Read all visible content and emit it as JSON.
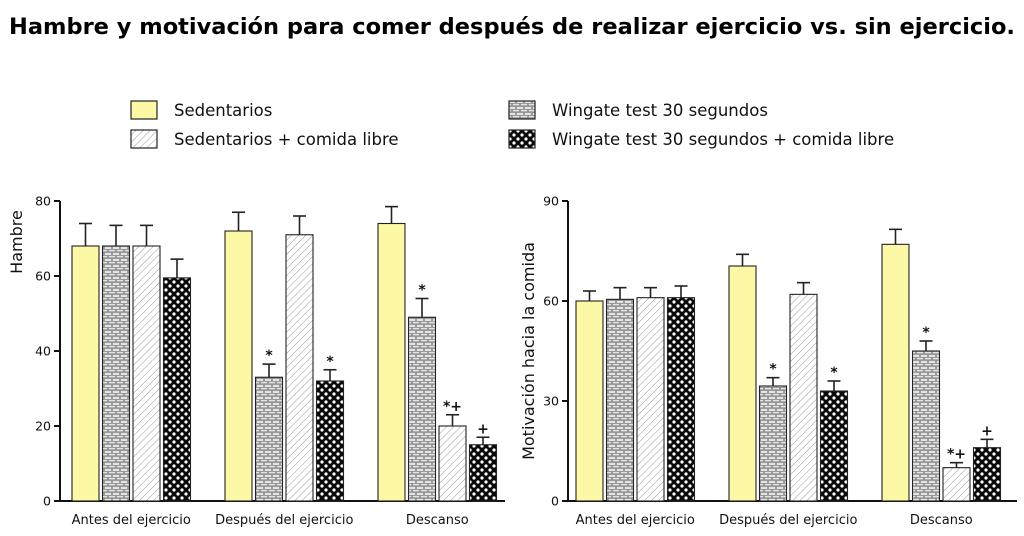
{
  "title": "Hambre y motivación para comer después de realizar ejercicio vs. sin ejercicio.",
  "legend": [
    {
      "label": "Sedentarios",
      "pattern": "solid"
    },
    {
      "label": "Sedentarios + comida libre",
      "pattern": "hatch"
    },
    {
      "label": "Wingate test 30 segundos",
      "pattern": "brick"
    },
    {
      "label": "Wingate test 30 segundos + comida libre",
      "pattern": "dots"
    }
  ],
  "colors": {
    "sedentary": "#FCF8A6",
    "bar_outline": "#222222",
    "pattern_fill": "#555555"
  },
  "chart_data": [
    {
      "type": "bar",
      "ylabel": "Hambre",
      "ylim": [
        0,
        80
      ],
      "yticks": [
        0,
        20,
        40,
        60,
        80
      ],
      "categories": [
        "Antes del ejercicio",
        "Después del ejercicio",
        "Descanso"
      ],
      "series": [
        {
          "name": "Sedentarios",
          "values": [
            68,
            72,
            74
          ],
          "errors": [
            6,
            5,
            4.5
          ]
        },
        {
          "name": "Sedentarios + comida libre",
          "values": [
            68,
            71,
            20
          ],
          "errors": [
            5.5,
            5,
            3
          ],
          "markers": [
            "",
            "",
            "*+"
          ]
        },
        {
          "name": "Wingate test 30 segundos",
          "values": [
            68,
            33,
            49
          ],
          "errors": [
            5.5,
            3.5,
            5
          ],
          "markers": [
            "",
            "*",
            "*"
          ]
        },
        {
          "name": "Wingate test 30 segundos + comida libre",
          "values": [
            59.5,
            32,
            15
          ],
          "errors": [
            5,
            3,
            2
          ],
          "markers": [
            "",
            "*",
            "+"
          ]
        }
      ]
    },
    {
      "type": "bar",
      "ylabel": "Motivación hacia la comida",
      "ylim": [
        0,
        90
      ],
      "yticks": [
        0,
        30,
        60,
        90
      ],
      "categories": [
        "Antes del ejercicio",
        "Después del ejercicio",
        "Descanso"
      ],
      "series": [
        {
          "name": "Sedentarios",
          "values": [
            60,
            70.5,
            77
          ],
          "errors": [
            3,
            3.5,
            4.5
          ]
        },
        {
          "name": "Sedentarios + comida libre",
          "values": [
            61,
            62,
            10
          ],
          "errors": [
            3,
            3.5,
            1.5
          ],
          "markers": [
            "",
            "",
            "*+"
          ]
        },
        {
          "name": "Wingate test 30 segundos",
          "values": [
            60.5,
            34.5,
            45
          ],
          "errors": [
            3.5,
            2.5,
            3
          ],
          "markers": [
            "",
            "*",
            "*"
          ]
        },
        {
          "name": "Wingate test 30 segundos + comida libre",
          "values": [
            61,
            33,
            16
          ],
          "errors": [
            3.5,
            3,
            2.5
          ],
          "markers": [
            "",
            "*",
            "+"
          ]
        }
      ]
    }
  ]
}
